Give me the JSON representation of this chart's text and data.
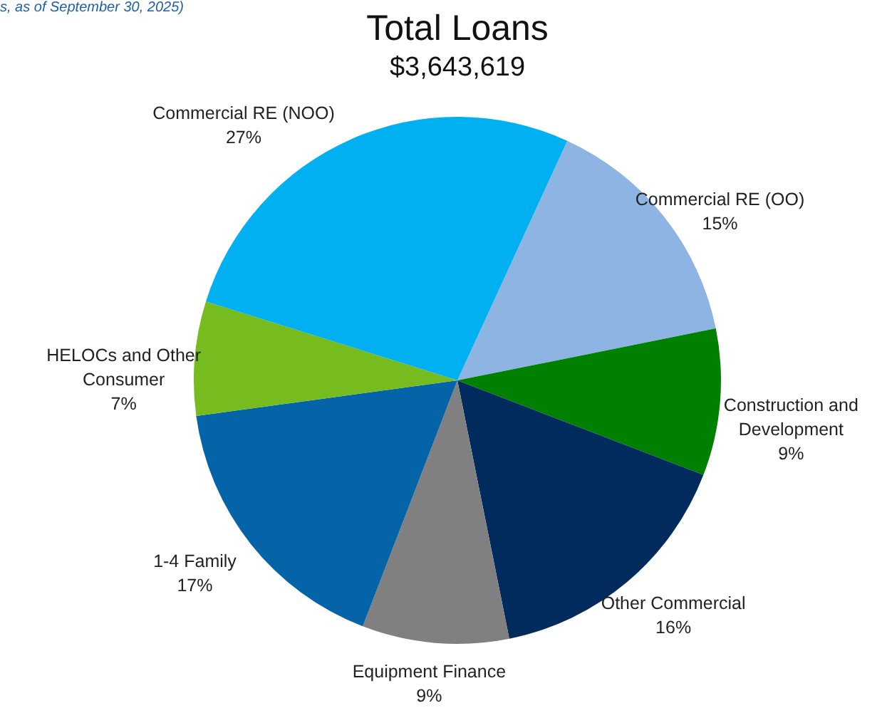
{
  "chart_data": {
    "type": "pie",
    "title": "Total Loans",
    "subtitle": "$3,643,619",
    "annotations": [
      "s, as of September 30, 2025)"
    ],
    "categories": [
      "Commercial RE (OO)",
      "Construction and Development",
      "Other Commercial",
      "Equipment Finance",
      "1-4 Family",
      "HELOCs and Other Consumer",
      "Commercial RE (NOO)"
    ],
    "values": [
      15,
      9,
      16,
      9,
      17,
      7,
      27
    ],
    "value_labels": [
      "15%",
      "9%",
      "16%",
      "9%",
      "17%",
      "7%",
      "27%"
    ],
    "colors": [
      "#8eb4e3",
      "#008000",
      "#002b5c",
      "#808080",
      "#0563a8",
      "#77bc1f",
      "#00b0f0"
    ]
  }
}
